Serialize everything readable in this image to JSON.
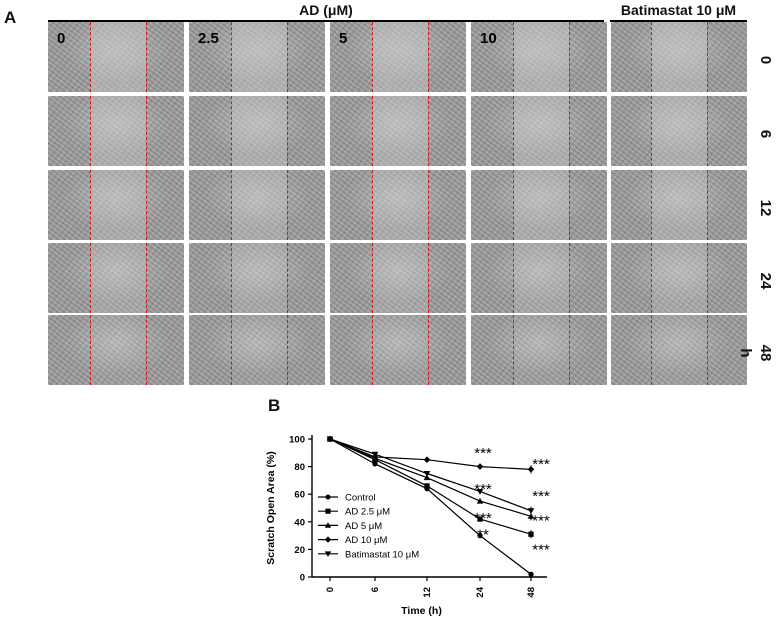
{
  "figure": {
    "panel_a_letter": "A",
    "panel_b_letter": "B",
    "group_headers": {
      "ad": "AD (μM)",
      "batimastat": "Batimastat 10 μM"
    },
    "concentration_labels": [
      "0",
      "2.5",
      "5",
      "10",
      ""
    ],
    "time_labels": [
      "0",
      "6",
      "12",
      "24",
      "48 h"
    ],
    "micrographs_note_visible": false
  },
  "chart_data": {
    "type": "line",
    "xlabel": "Time (h)",
    "ylabel": "Scratch Open Area (%)",
    "x": [
      0,
      6,
      12,
      24,
      48
    ],
    "x_tick_labels": [
      "0",
      "6",
      "12",
      "24",
      "48"
    ],
    "ylim": [
      0,
      100
    ],
    "y_ticks": [
      0,
      20,
      40,
      60,
      80,
      100
    ],
    "grid": false,
    "legend_position": "left",
    "series": [
      {
        "name": "Control",
        "marker": "circle",
        "values": [
          100,
          82,
          64,
          30,
          2
        ]
      },
      {
        "name": "AD 2.5 μM",
        "marker": "square",
        "values": [
          100,
          85,
          66,
          42,
          31
        ]
      },
      {
        "name": "AD 5 μM",
        "marker": "triangle-up",
        "values": [
          100,
          86,
          72,
          55,
          44
        ]
      },
      {
        "name": "AD 10 μM",
        "marker": "diamond",
        "values": [
          100,
          87,
          85,
          80,
          78
        ]
      },
      {
        "name": "Batimastat 10 μM",
        "marker": "triangle-down",
        "values": [
          100,
          89,
          75,
          62,
          48
        ]
      }
    ],
    "annotations": [
      {
        "text": "***",
        "x": 24,
        "y": 92
      },
      {
        "text": "***",
        "x": 48,
        "y": 84
      },
      {
        "text": "***",
        "x": 48,
        "y": 61
      },
      {
        "text": "***",
        "x": 48,
        "y": 43
      },
      {
        "text": "***",
        "x": 48,
        "y": 22
      }
    ]
  }
}
